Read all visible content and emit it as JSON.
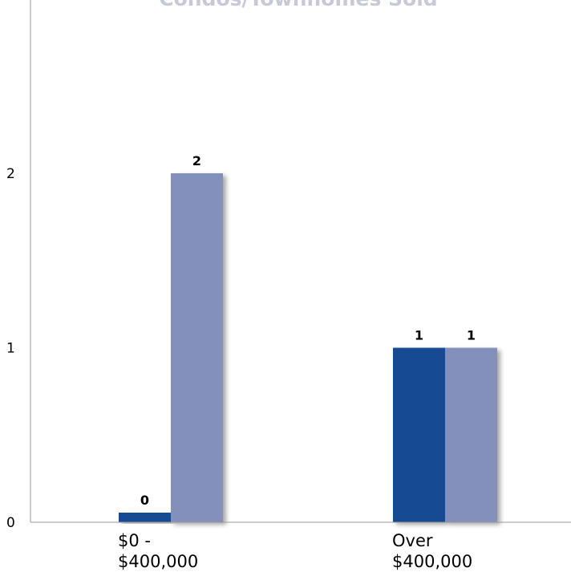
{
  "chart_data": {
    "type": "bar",
    "title": "Condos/Townhomes Sold",
    "categories": [
      [
        "$0 -",
        "$400,000"
      ],
      [
        "Over",
        "$400,000"
      ]
    ],
    "series": [
      {
        "values": [
          0,
          1
        ],
        "color": "#124c93"
      },
      {
        "values": [
          2,
          1
        ],
        "color": "#8490bc"
      }
    ],
    "data_labels": [
      [
        "0",
        "1"
      ],
      [
        "2",
        "1"
      ]
    ],
    "yticks": [
      "0",
      "1",
      "2"
    ],
    "ylim": [
      0,
      2.95
    ],
    "grid": false,
    "legend": "none"
  }
}
